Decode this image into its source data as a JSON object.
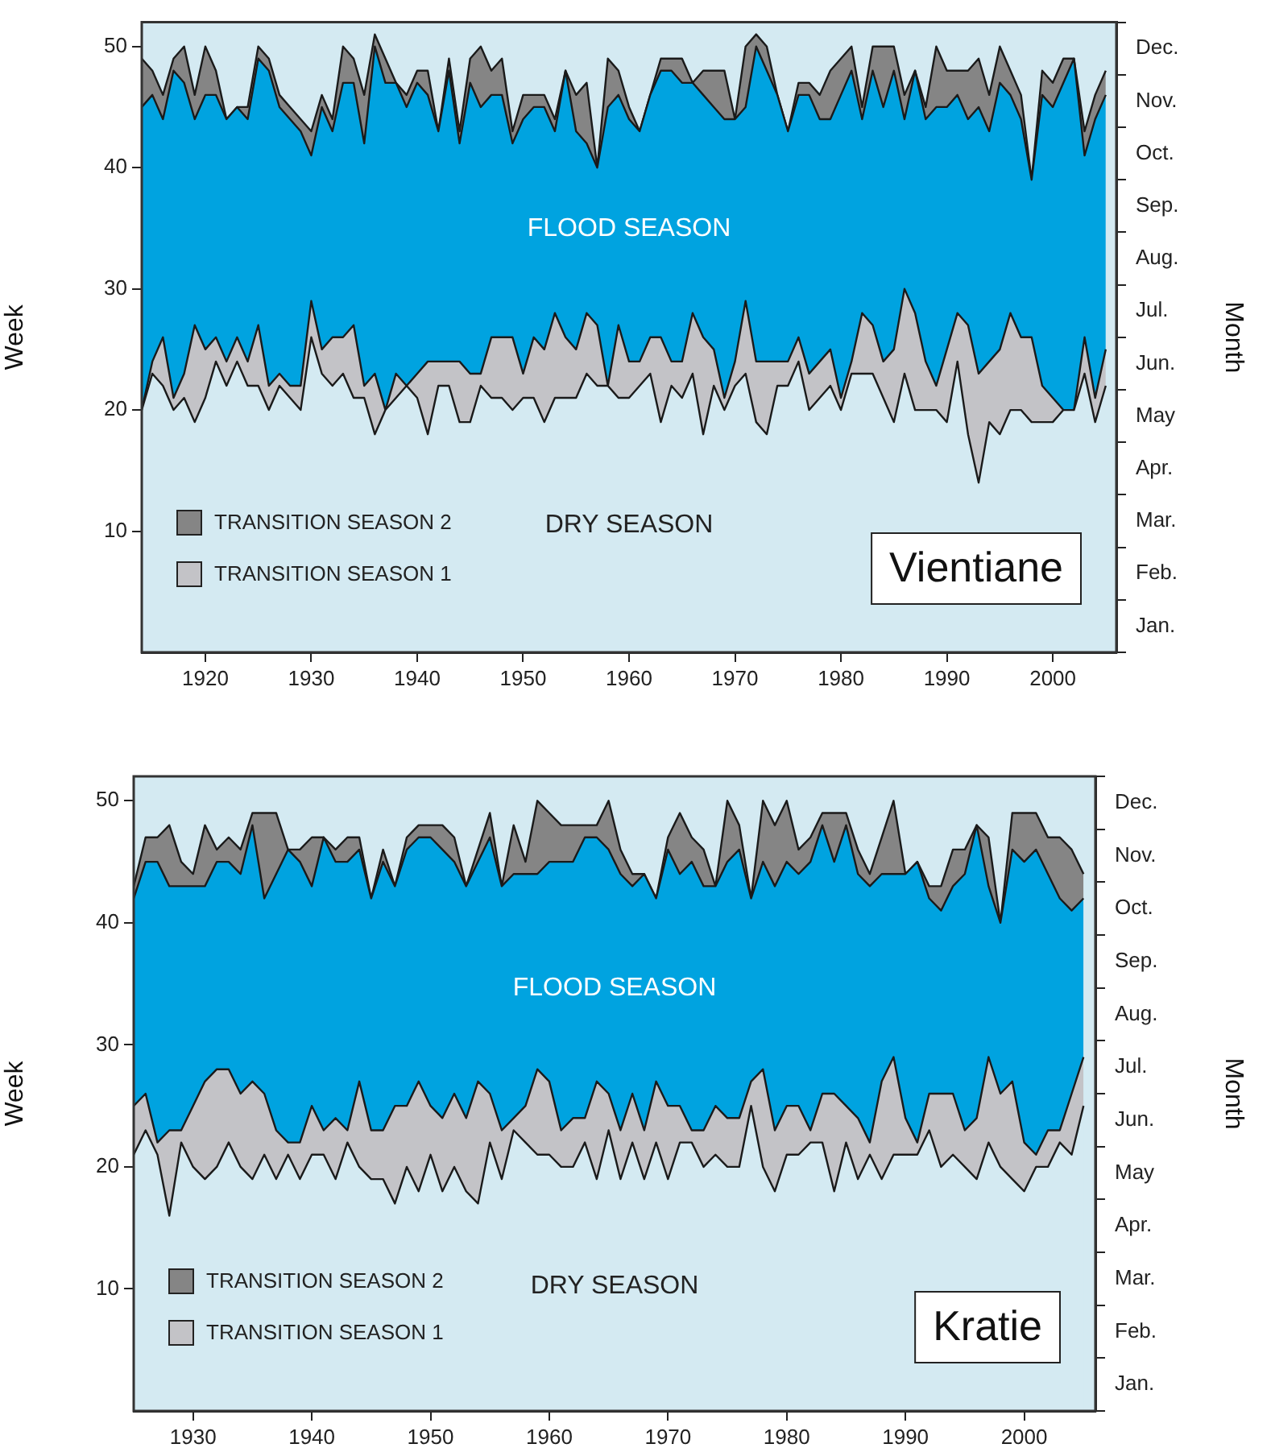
{
  "chart_data": [
    {
      "type": "area",
      "stacked": true,
      "title": "Vientiane",
      "ylabel": "Week",
      "y2label": "Month",
      "x": [
        1914,
        1915,
        1916,
        1917,
        1918,
        1919,
        1920,
        1921,
        1922,
        1923,
        1924,
        1925,
        1926,
        1927,
        1928,
        1929,
        1930,
        1931,
        1932,
        1933,
        1934,
        1935,
        1936,
        1937,
        1938,
        1939,
        1940,
        1941,
        1942,
        1943,
        1944,
        1945,
        1946,
        1947,
        1948,
        1949,
        1950,
        1951,
        1952,
        1953,
        1954,
        1955,
        1956,
        1957,
        1958,
        1959,
        1960,
        1961,
        1962,
        1963,
        1964,
        1965,
        1966,
        1967,
        1968,
        1969,
        1970,
        1971,
        1972,
        1973,
        1974,
        1975,
        1976,
        1977,
        1978,
        1979,
        1980,
        1981,
        1982,
        1983,
        1984,
        1985,
        1986,
        1987,
        1988,
        1989,
        1990,
        1991,
        1992,
        1993,
        1994,
        1995,
        1996,
        1997,
        1998,
        1999,
        2000,
        2001,
        2002,
        2003,
        2004,
        2005
      ],
      "series": [
        {
          "color": "#d4eaf2",
          "values": [
            20,
            23,
            22,
            20,
            21,
            19,
            21,
            24,
            22,
            24,
            22,
            22,
            20,
            22,
            21,
            20,
            26,
            23,
            22,
            23,
            21,
            21,
            18,
            20,
            21,
            22,
            21,
            18,
            22,
            22,
            19,
            19,
            22,
            21,
            21,
            20,
            21,
            21,
            19,
            21,
            21,
            21,
            23,
            22,
            22,
            21,
            21,
            22,
            23,
            19,
            22,
            21,
            23,
            18,
            22,
            20,
            22,
            23,
            19,
            18,
            22,
            22,
            24,
            20,
            21,
            22,
            20,
            23,
            23,
            23,
            21,
            19,
            23,
            20,
            20,
            20,
            19,
            24,
            18,
            14,
            19,
            18,
            20,
            20,
            19,
            19,
            19,
            20,
            20,
            23,
            19,
            22
          ]
        },
        {
          "name": "TRANSITION SEASON 1",
          "color": "#c3c3c7",
          "values": [
            0,
            1,
            4,
            1,
            2,
            8,
            4,
            2,
            2,
            2,
            2,
            5,
            2,
            1,
            1,
            2,
            3,
            2,
            4,
            3,
            6,
            1,
            5,
            0,
            2,
            0,
            2,
            6,
            2,
            2,
            5,
            4,
            1,
            5,
            5,
            6,
            2,
            5,
            6,
            7,
            5,
            4,
            5,
            5,
            0,
            6,
            3,
            2,
            3,
            7,
            2,
            3,
            5,
            8,
            3,
            1,
            2,
            6,
            5,
            6,
            2,
            2,
            2,
            3,
            3,
            3,
            1,
            1,
            5,
            4,
            3,
            6,
            7,
            8,
            4,
            2,
            6,
            4,
            9,
            9,
            5,
            7,
            8,
            6,
            7,
            3,
            2,
            0,
            0,
            3,
            2,
            3
          ]
        },
        {
          "color": "#00a3e0",
          "values": [
            25,
            22,
            18,
            27,
            24,
            17,
            21,
            20,
            20,
            19,
            20,
            22,
            26,
            22,
            22,
            21,
            12,
            20,
            17,
            21,
            20,
            20,
            27,
            27,
            24,
            23,
            24,
            22,
            19,
            24,
            18,
            24,
            22,
            20,
            20,
            16,
            21,
            19,
            20,
            15,
            22,
            18,
            14,
            13,
            23,
            19,
            20,
            19,
            20,
            22,
            24,
            23,
            19,
            20,
            20,
            23,
            20,
            16,
            26,
            24,
            22,
            19,
            20,
            23,
            20,
            19,
            25,
            24,
            16,
            21,
            21,
            23,
            14,
            20,
            20,
            23,
            20,
            18,
            17,
            22,
            19,
            22,
            18,
            18,
            13,
            24,
            24,
            27,
            29,
            15,
            23,
            21
          ]
        },
        {
          "name": "TRANSITION SEASON 2",
          "color": "#858585",
          "values": [
            4,
            2,
            2,
            1,
            3,
            2,
            4,
            2,
            0,
            0,
            1,
            1,
            1,
            1,
            1,
            1,
            2,
            1,
            1,
            3,
            2,
            4,
            1,
            2,
            0,
            1,
            1,
            2,
            0,
            1,
            1,
            2,
            5,
            2,
            3,
            1,
            2,
            1,
            1,
            1,
            0,
            3,
            5,
            0,
            4,
            2,
            1,
            0,
            0,
            1,
            1,
            2,
            0,
            2,
            3,
            4,
            0,
            5,
            1,
            2,
            0,
            0,
            1,
            1,
            2,
            4,
            3,
            2,
            1,
            2,
            5,
            2,
            2,
            0,
            1,
            5,
            3,
            2,
            4,
            4,
            3,
            3,
            2,
            2,
            0,
            2,
            2,
            2,
            0,
            2,
            2,
            2
          ]
        }
      ],
      "xlim": [
        1914,
        2006
      ],
      "xticks": [
        1920,
        1930,
        1940,
        1950,
        1960,
        1970,
        1980,
        1990,
        2000
      ],
      "ylim": [
        0,
        52
      ],
      "yticks": [
        10,
        20,
        30,
        40,
        50
      ],
      "y2_categories": [
        "Dec.",
        "Nov.",
        "Oct.",
        "Sep.",
        "Aug.",
        "Jul.",
        "Jun.",
        "May",
        "Apr.",
        "Mar.",
        "Feb.",
        "Jan."
      ],
      "annotations": [
        "FLOOD SEASON",
        "DRY SEASON"
      ],
      "legend": "bottom left"
    },
    {
      "type": "area",
      "stacked": true,
      "title": "Kratie",
      "ylabel": "Week",
      "y2label": "Month",
      "x": [
        1925,
        1926,
        1927,
        1928,
        1929,
        1930,
        1931,
        1932,
        1933,
        1934,
        1935,
        1936,
        1937,
        1938,
        1939,
        1940,
        1941,
        1942,
        1943,
        1944,
        1945,
        1946,
        1947,
        1948,
        1949,
        1950,
        1951,
        1952,
        1953,
        1954,
        1955,
        1956,
        1957,
        1958,
        1959,
        1960,
        1961,
        1962,
        1963,
        1964,
        1965,
        1966,
        1967,
        1968,
        1969,
        1970,
        1971,
        1972,
        1973,
        1974,
        1975,
        1976,
        1977,
        1978,
        1979,
        1980,
        1981,
        1982,
        1983,
        1984,
        1985,
        1986,
        1987,
        1988,
        1989,
        1990,
        1991,
        1992,
        1993,
        1994,
        1995,
        1996,
        1997,
        1998,
        1999,
        2000,
        2001,
        2002,
        2003,
        2004,
        2005
      ],
      "series": [
        {
          "color": "#d4eaf2",
          "values": [
            21,
            23,
            21,
            16,
            22,
            20,
            19,
            20,
            22,
            20,
            19,
            21,
            19,
            21,
            19,
            21,
            21,
            19,
            22,
            20,
            19,
            19,
            17,
            20,
            18,
            21,
            18,
            20,
            18,
            17,
            22,
            19,
            23,
            22,
            21,
            21,
            20,
            20,
            22,
            19,
            23,
            19,
            22,
            19,
            22,
            19,
            22,
            22,
            20,
            21,
            20,
            20,
            25,
            20,
            18,
            21,
            21,
            22,
            22,
            18,
            22,
            19,
            21,
            19,
            21,
            21,
            21,
            23,
            20,
            21,
            20,
            19,
            22,
            20,
            19,
            18,
            20,
            20,
            22,
            21,
            25
          ]
        },
        {
          "name": "TRANSITION SEASON 1",
          "color": "#c3c3c7",
          "values": [
            4,
            3,
            1,
            7,
            1,
            5,
            8,
            8,
            6,
            6,
            8,
            5,
            4,
            1,
            3,
            4,
            2,
            5,
            1,
            7,
            4,
            4,
            8,
            5,
            9,
            4,
            6,
            6,
            6,
            10,
            4,
            4,
            1,
            3,
            7,
            6,
            3,
            4,
            2,
            8,
            3,
            4,
            4,
            4,
            5,
            6,
            3,
            1,
            3,
            4,
            4,
            4,
            2,
            8,
            5,
            4,
            4,
            1,
            4,
            8,
            3,
            5,
            1,
            8,
            8,
            3,
            1,
            3,
            6,
            5,
            3,
            5,
            7,
            6,
            8,
            4,
            1,
            3,
            1,
            5,
            4
          ]
        },
        {
          "color": "#00a3e0",
          "values": [
            17,
            19,
            23,
            20,
            20,
            18,
            16,
            17,
            17,
            18,
            21,
            16,
            21,
            24,
            23,
            18,
            24,
            21,
            22,
            19,
            19,
            22,
            18,
            21,
            20,
            22,
            22,
            19,
            19,
            18,
            21,
            20,
            20,
            19,
            16,
            18,
            22,
            21,
            23,
            20,
            20,
            21,
            17,
            21,
            15,
            21,
            19,
            22,
            20,
            18,
            21,
            22,
            15,
            17,
            20,
            20,
            19,
            22,
            22,
            19,
            23,
            20,
            21,
            17,
            15,
            20,
            23,
            16,
            15,
            17,
            21,
            24,
            14,
            14,
            19,
            23,
            25,
            21,
            19,
            15,
            13
          ]
        },
        {
          "name": "TRANSITION SEASON 2",
          "color": "#858585",
          "values": [
            1,
            2,
            2,
            5,
            2,
            1,
            5,
            1,
            2,
            2,
            1,
            7,
            5,
            0,
            1,
            4,
            0,
            1,
            2,
            1,
            0,
            1,
            0,
            1,
            1,
            1,
            2,
            2,
            0,
            1,
            2,
            0,
            4,
            1,
            6,
            4,
            3,
            3,
            1,
            1,
            4,
            2,
            1,
            0,
            0,
            1,
            5,
            2,
            3,
            0,
            5,
            2,
            0,
            5,
            5,
            5,
            2,
            2,
            1,
            4,
            1,
            2,
            1,
            3,
            6,
            0,
            0,
            1,
            2,
            3,
            2,
            0,
            4,
            0,
            3,
            4,
            3,
            3,
            5,
            5,
            2
          ]
        }
      ],
      "xlim": [
        1925,
        2006
      ],
      "xticks": [
        1930,
        1940,
        1950,
        1960,
        1970,
        1980,
        1990,
        2000
      ],
      "ylim": [
        0,
        52
      ],
      "yticks": [
        10,
        20,
        30,
        40,
        50
      ],
      "y2_categories": [
        "Dec.",
        "Nov.",
        "Oct.",
        "Sep.",
        "Aug.",
        "Jul.",
        "Jun.",
        "May",
        "Apr.",
        "Mar.",
        "Feb.",
        "Jan."
      ],
      "annotations": [
        "FLOOD SEASON",
        "DRY SEASON"
      ],
      "legend": "bottom left"
    }
  ]
}
